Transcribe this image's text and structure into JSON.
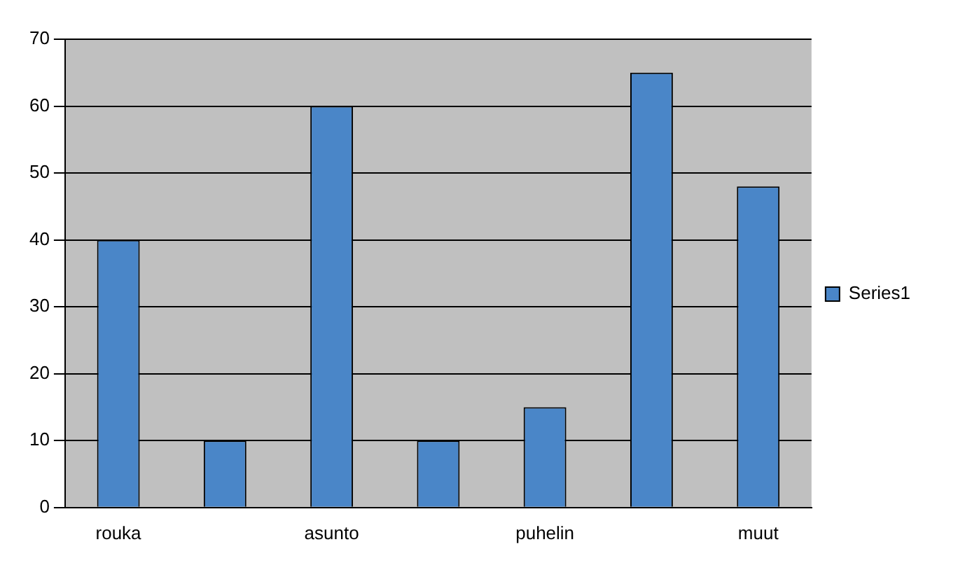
{
  "chart_data": {
    "type": "bar",
    "categories": [
      "rouka",
      null,
      "asunto",
      null,
      "puhelin",
      null,
      "muut"
    ],
    "series": [
      {
        "name": "Series1",
        "color": "#4a86c8",
        "values": [
          40,
          10,
          60,
          10,
          15,
          65,
          48
        ]
      }
    ],
    "ylim": [
      0,
      70
    ],
    "yticks": [
      0,
      10,
      20,
      30,
      40,
      50,
      60,
      70
    ],
    "grid": "y",
    "legend": "right"
  }
}
